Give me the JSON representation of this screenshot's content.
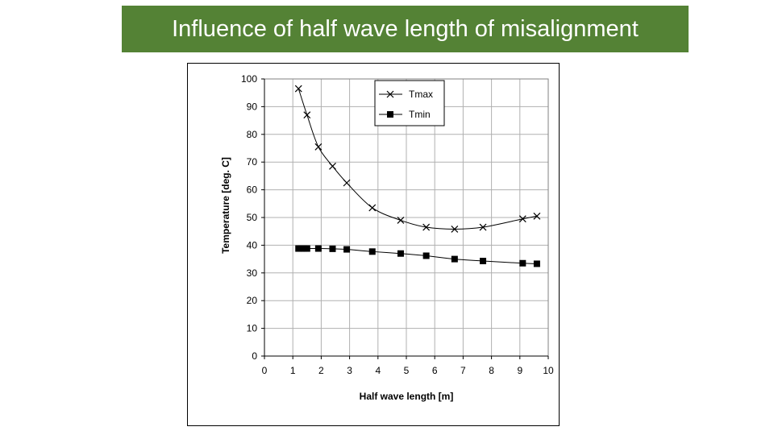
{
  "slide": {
    "title": "Influence of half wave length of misalignment",
    "title_bg_color": "#548235",
    "title_text_color": "#ffffff"
  },
  "chart_data": {
    "type": "line",
    "title": "",
    "xlabel": "Half wave length [m]",
    "ylabel": "Temperature [deg. C]",
    "xlim": [
      0,
      10
    ],
    "ylim": [
      0,
      100
    ],
    "xticks": [
      0,
      1,
      2,
      3,
      4,
      5,
      6,
      7,
      8,
      9,
      10
    ],
    "yticks": [
      0,
      10,
      20,
      30,
      40,
      50,
      60,
      70,
      80,
      90,
      100
    ],
    "grid": true,
    "legend_position": "top-center",
    "series": [
      {
        "name": "Tmax",
        "marker": "x",
        "x": [
          1.2,
          1.5,
          1.9,
          2.4,
          2.9,
          3.8,
          4.8,
          5.7,
          6.7,
          7.7,
          9.1,
          9.6
        ],
        "y": [
          96.5,
          87,
          75.5,
          68.5,
          62.5,
          53.5,
          49,
          46.5,
          45.8,
          46.5,
          49.5,
          50.5
        ]
      },
      {
        "name": "Tmin",
        "marker": "square",
        "x": [
          1.2,
          1.3,
          1.4,
          1.5,
          1.9,
          2.4,
          2.9,
          3.8,
          4.8,
          5.7,
          6.7,
          7.7,
          9.1,
          9.6
        ],
        "y": [
          38.8,
          38.8,
          38.8,
          38.8,
          38.8,
          38.7,
          38.5,
          37.7,
          37.0,
          36.2,
          35.0,
          34.3,
          33.5,
          33.3
        ]
      }
    ]
  }
}
